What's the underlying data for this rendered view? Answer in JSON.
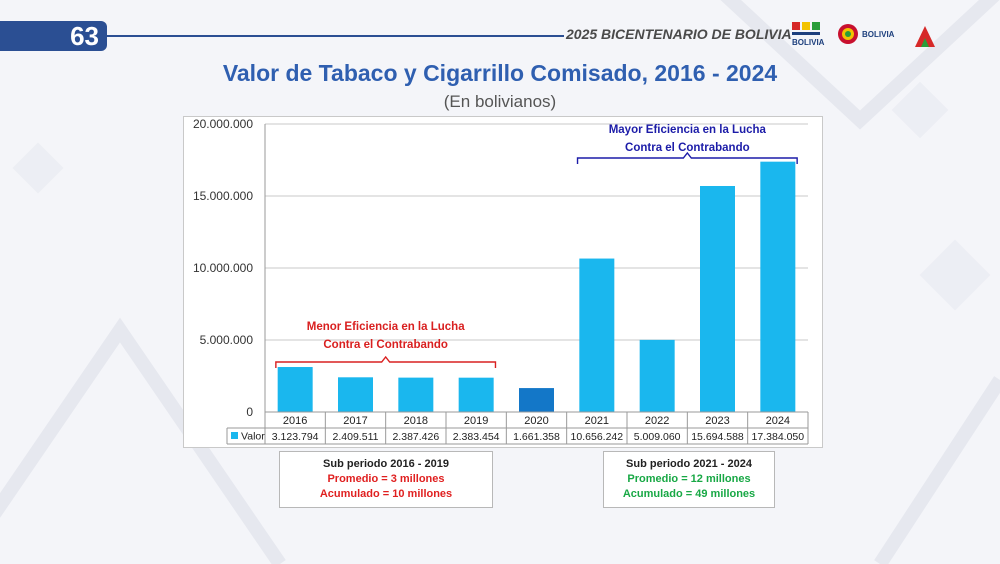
{
  "slide": {
    "number": "63"
  },
  "header": {
    "bicentenario": "2025 BICENTENARIO DE BOLIVIA",
    "logo_text_1": "BOLIVIA",
    "logo_text_2": "BOLIVIA"
  },
  "title": "Valor de Tabaco y Cigarrillo Comisado, 2016 - 2024",
  "subtitle": "(En bolivianos)",
  "chart_data": {
    "type": "bar",
    "categories": [
      "2016",
      "2017",
      "2018",
      "2019",
      "2020",
      "2021",
      "2022",
      "2023",
      "2024"
    ],
    "series": [
      {
        "name": "Valor",
        "values": [
          3123794,
          2409511,
          2387426,
          2383454,
          1661358,
          10656242,
          5009060,
          15694588,
          17384050
        ],
        "value_labels": [
          "3.123.794",
          "2.409.511",
          "2.387.426",
          "2.383.454",
          "1.661.358",
          "10.656.242",
          "5.009.060",
          "15.694.588",
          "17.384.050"
        ]
      }
    ],
    "ylim": [
      0,
      20000000
    ],
    "yticks": [
      0,
      5000000,
      10000000,
      15000000,
      20000000
    ],
    "ytick_labels": [
      "0",
      "5.000.000",
      "10.000.000",
      "15.000.000",
      "20.000.000"
    ],
    "grid": true,
    "legend": "data-table",
    "colors": {
      "bar": "#1ab7ee",
      "highlight": "#1377c8"
    },
    "highlight_category": "2020",
    "annotations": [
      {
        "line1": "Menor Eficiencia  en la Lucha",
        "line2": "Contra el Contrabando",
        "color": "#d92020",
        "span": [
          "2016",
          "2019"
        ]
      },
      {
        "line1": "Mayor Eficiencia  en la Lucha",
        "line2": "Contra el Contrabando",
        "color": "#1c1ca8",
        "span": [
          "2021",
          "2024"
        ]
      }
    ]
  },
  "summary": [
    {
      "heading": "Sub periodo 2016 - 2019",
      "promedio": "Promedio =  3 millones",
      "acumulado": "Acumulado = 10 millones"
    },
    {
      "heading": "Sub periodo 2021 - 2024",
      "promedio": "Promedio =  12 millones",
      "acumulado": "Acumulado = 49 millones"
    }
  ]
}
